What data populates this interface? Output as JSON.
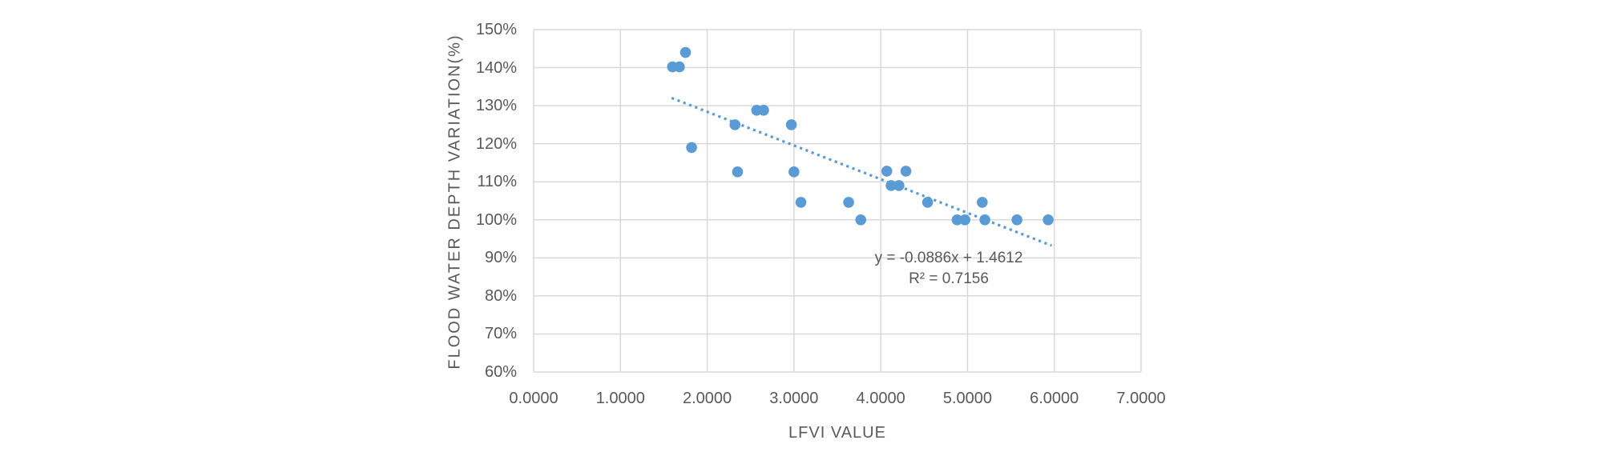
{
  "chart_data": {
    "type": "scatter",
    "title": "",
    "xlabel": "LFVI VALUE",
    "ylabel": "FLOOD WATER DEPTH VARIATION(%)",
    "x_ticks": [
      "0.0000",
      "1.0000",
      "2.0000",
      "3.0000",
      "4.0000",
      "5.0000",
      "6.0000",
      "7.0000"
    ],
    "y_ticks": [
      "150%",
      "140%",
      "130%",
      "120%",
      "110%",
      "100%",
      "90%",
      "80%",
      "70%",
      "60%"
    ],
    "xlim": [
      0.0,
      7.0
    ],
    "ylim": [
      0.6,
      1.5
    ],
    "grid": true,
    "legend": "none",
    "points": [
      [
        1.6,
        1.402
      ],
      [
        1.68,
        1.402
      ],
      [
        1.75,
        1.44
      ],
      [
        1.82,
        1.19
      ],
      [
        2.32,
        1.25
      ],
      [
        2.35,
        1.126
      ],
      [
        2.57,
        1.288
      ],
      [
        2.65,
        1.288
      ],
      [
        2.97,
        1.25
      ],
      [
        3.0,
        1.126
      ],
      [
        3.08,
        1.046
      ],
      [
        3.63,
        1.046
      ],
      [
        3.77,
        1.0
      ],
      [
        4.07,
        1.128
      ],
      [
        4.29,
        1.128
      ],
      [
        4.12,
        1.09
      ],
      [
        4.21,
        1.09
      ],
      [
        4.54,
        1.046
      ],
      [
        4.88,
        1.0
      ],
      [
        4.97,
        1.0
      ],
      [
        5.17,
        1.046
      ],
      [
        5.2,
        1.0
      ],
      [
        5.57,
        1.0
      ],
      [
        5.93,
        1.0
      ]
    ],
    "trendline": {
      "type": "linear",
      "slope": -0.0886,
      "intercept": 1.4612,
      "r_squared": 0.7156,
      "x_start": 1.59,
      "x_end": 5.97,
      "style": "dotted",
      "label_line1": "y = -0.0886x + 1.4612",
      "label_line2": "R² = 0.7156"
    },
    "colors": {
      "marker": "#5B9BD5",
      "trendline": "#5B9BD5",
      "gridline": "#D9D9D9",
      "text": "#595959"
    }
  }
}
